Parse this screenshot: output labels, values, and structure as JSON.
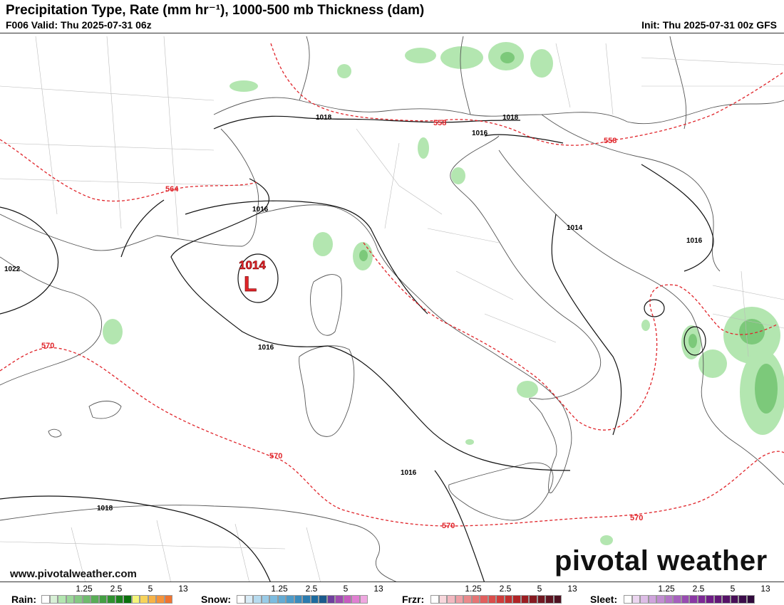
{
  "header": {
    "title": "Precipitation Type, Rate (mm hr⁻¹), 1000-500 mb Thickness (dam)",
    "valid": "F006 Valid: Thu 2025-07-31 06z",
    "init": "Init: Thu 2025-07-31 00z GFS"
  },
  "map": {
    "pressure_center": {
      "type": "L",
      "value": "1014"
    },
    "isobar_labels": [
      "1018",
      "1018",
      "1016",
      "1016",
      "1014",
      "1016",
      "1022",
      "1016",
      "1016",
      "1018"
    ],
    "thickness_labels": [
      "558",
      "558",
      "564",
      "570",
      "570",
      "570",
      "570"
    ],
    "colors": {
      "isobar": "#111111",
      "thickness": "#e0242a",
      "borders": "#555555",
      "rain_light": "#b3e6b0",
      "rain_medium": "#7cc97a"
    }
  },
  "branding": {
    "logo": "pivotal weather",
    "website": "www.pivotalweather.com"
  },
  "legend": {
    "ticks": [
      "1.25",
      "2.5",
      "5",
      "13"
    ],
    "groups": [
      {
        "label": "Rain:",
        "colors": [
          "#ffffff",
          "#d8f0d6",
          "#b3e6b0",
          "#9cd79a",
          "#85c983",
          "#6fbb6d",
          "#59ad57",
          "#449f43",
          "#2f912f",
          "#1b831c",
          "#0a700c",
          "#f5f57a",
          "#f7d35a",
          "#f7b347",
          "#f5933a",
          "#ef7430"
        ]
      },
      {
        "label": "Snow:",
        "colors": [
          "#ffffff",
          "#d9ecf7",
          "#b7dbef",
          "#99cbe7",
          "#7cbbdf",
          "#64abd4",
          "#4d9bc9",
          "#3a8bbd",
          "#2a7baf",
          "#1d6b9f",
          "#1b5a8c",
          "#6f3f9e",
          "#a04bb0",
          "#c85cc0",
          "#e07fd1",
          "#efa7e0"
        ]
      },
      {
        "label": "Frzr:",
        "colors": [
          "#ffffff",
          "#f8d7dc",
          "#f2b8c0",
          "#eea0a6",
          "#ea8a8c",
          "#e67474",
          "#e15f5e",
          "#da4d4a",
          "#cf3c3a",
          "#c12f2e",
          "#b02426",
          "#9b1d22",
          "#861a20",
          "#701720",
          "#5e1420",
          "#4d1221"
        ]
      },
      {
        "label": "Sleet:",
        "colors": [
          "#ffffff",
          "#ecd6f0",
          "#ddbde6",
          "#cfa4dc",
          "#c18dd2",
          "#b476c8",
          "#a660bd",
          "#984bb1",
          "#8a38a4",
          "#7d2896",
          "#6f1c87",
          "#621677",
          "#551267",
          "#480f58",
          "#3c0c4a",
          "#30093c"
        ]
      }
    ]
  }
}
